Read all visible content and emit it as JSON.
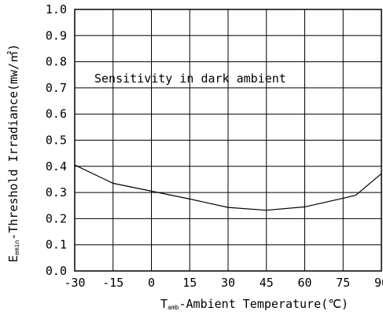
{
  "chart_data": {
    "type": "line",
    "title": "",
    "annotation": "Sensitivity in dark ambient",
    "xlabel": {
      "prefix": "T",
      "subscript": "amb",
      "text": "-Ambient Temperature(℃)"
    },
    "ylabel": {
      "prefix": "E",
      "subscript": "emin",
      "text": "-Threshold Irradiance(mw/㎡)"
    },
    "xlim": [
      -30,
      90
    ],
    "ylim": [
      0.0,
      1.0
    ],
    "x_ticks": [
      -30,
      -15,
      0,
      15,
      30,
      45,
      60,
      75,
      90
    ],
    "x_tick_labels": [
      "-30",
      "-15",
      "0",
      "15",
      "30",
      "45",
      "60",
      "75",
      "90"
    ],
    "y_ticks": [
      0.0,
      0.1,
      0.2,
      0.3,
      0.4,
      0.5,
      0.6,
      0.7,
      0.8,
      0.9,
      1.0
    ],
    "y_tick_labels": [
      "0.0",
      "0.1",
      "0.2",
      "0.3",
      "0.4",
      "0.5",
      "0.6",
      "0.7",
      "0.8",
      "0.9",
      "1.0"
    ],
    "grid": true,
    "series": [
      {
        "color": "#000000",
        "x": [
          -30,
          -15,
          0,
          15,
          30,
          45,
          60,
          75,
          80,
          90
        ],
        "y": [
          0.405,
          0.335,
          0.305,
          0.275,
          0.243,
          0.232,
          0.245,
          0.278,
          0.29,
          0.372
        ]
      }
    ]
  }
}
